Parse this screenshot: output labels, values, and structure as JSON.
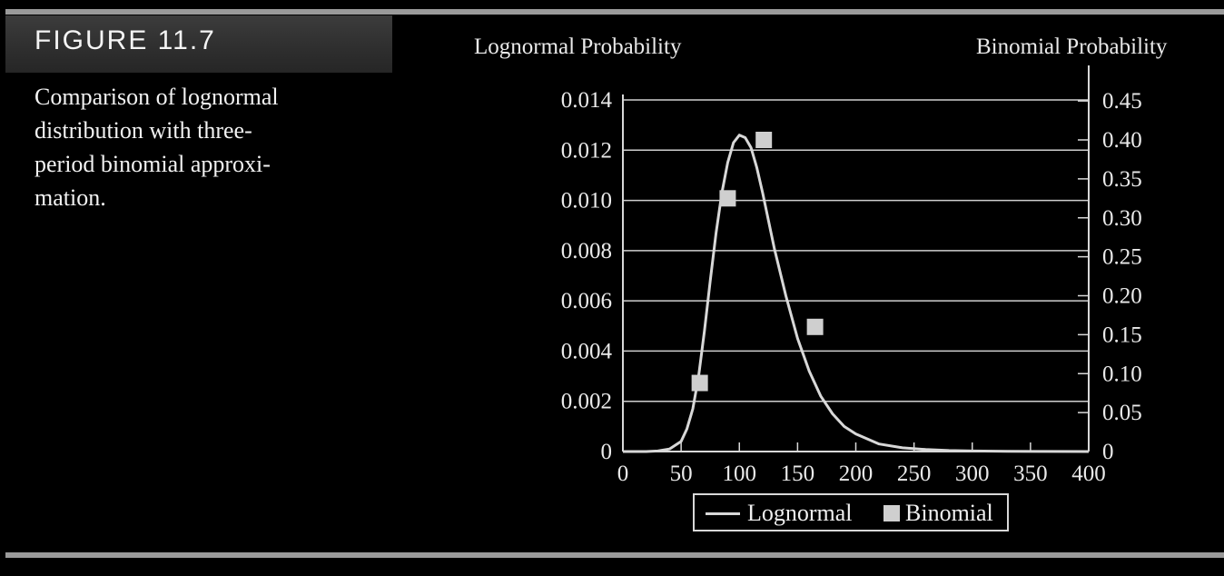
{
  "figure": {
    "label": "FIGURE 11.7",
    "caption_lines": [
      "Comparison of lognormal",
      "distribution with three-",
      "period binomial approxi-",
      "mation."
    ]
  },
  "chart_data": {
    "type": "line",
    "left_axis_title": "Lognormal Probability",
    "right_axis_title": "Binomial Probability",
    "xlim": [
      0,
      400
    ],
    "ylim_left": [
      0,
      0.014
    ],
    "ylim_right": [
      0,
      0.45
    ],
    "x_ticks": [
      "0",
      "50",
      "100",
      "150",
      "200",
      "250",
      "300",
      "350",
      "400"
    ],
    "x_tick_values": [
      0,
      50,
      100,
      150,
      200,
      250,
      300,
      350,
      400
    ],
    "left_ticks": [
      "0",
      "0.002",
      "0.004",
      "0.006",
      "0.008",
      "0.010",
      "0.012",
      "0.014"
    ],
    "left_tick_values": [
      0,
      0.002,
      0.004,
      0.006,
      0.008,
      0.01,
      0.012,
      0.014
    ],
    "right_ticks": [
      "0",
      "0.05",
      "0.10",
      "0.15",
      "0.20",
      "0.25",
      "0.30",
      "0.35",
      "0.40",
      "0.45"
    ],
    "right_tick_values": [
      0,
      0.05,
      0.1,
      0.15,
      0.2,
      0.25,
      0.3,
      0.35,
      0.4,
      0.45
    ],
    "grid": true,
    "legend_position": "bottom",
    "series": [
      {
        "name": "Lognormal",
        "axis": "left",
        "style": "line",
        "color": "#d8d8d8",
        "x": [
          0,
          20,
          30,
          40,
          50,
          55,
          60,
          65,
          70,
          75,
          80,
          85,
          90,
          95,
          100,
          105,
          110,
          115,
          120,
          125,
          130,
          140,
          150,
          160,
          170,
          180,
          190,
          200,
          220,
          240,
          260,
          280,
          300,
          330,
          360,
          400
        ],
        "y": [
          0,
          0,
          2e-05,
          0.0001,
          0.0004,
          0.0009,
          0.0017,
          0.003,
          0.0048,
          0.0068,
          0.0087,
          0.0103,
          0.0115,
          0.0123,
          0.0126,
          0.0125,
          0.0121,
          0.0113,
          0.0103,
          0.0092,
          0.0081,
          0.0062,
          0.0045,
          0.0032,
          0.0022,
          0.0015,
          0.001,
          0.0007,
          0.0003,
          0.00015,
          8e-05,
          4e-05,
          2e-05,
          1e-05,
          5e-06,
          0
        ]
      },
      {
        "name": "Binomial",
        "axis": "right",
        "style": "marker",
        "color": "#cfcfcf",
        "x": [
          66,
          90,
          121,
          165
        ],
        "y": [
          0.088,
          0.325,
          0.4,
          0.16
        ]
      }
    ]
  }
}
